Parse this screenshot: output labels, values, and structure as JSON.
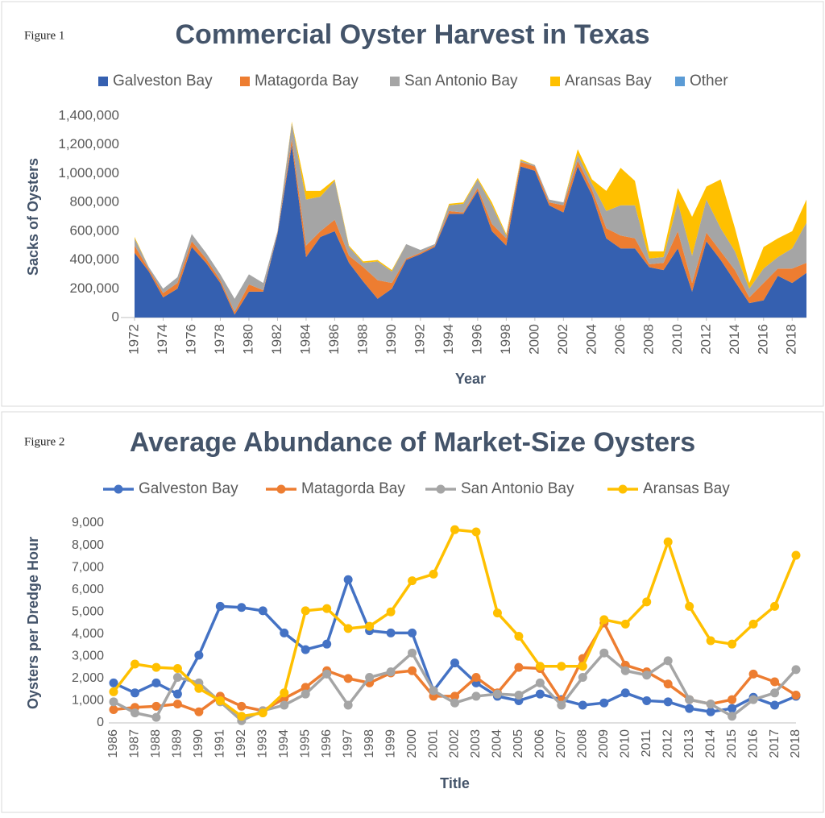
{
  "chart_data": [
    {
      "type": "area",
      "stacked": true,
      "label": "Figure 1",
      "title": "Commercial Oyster Harvest in Texas",
      "x_label": "Year",
      "y_label": "Sacks of Oysters",
      "x": [
        1972,
        1973,
        1974,
        1975,
        1976,
        1977,
        1978,
        1979,
        1980,
        1981,
        1982,
        1983,
        1984,
        1985,
        1986,
        1987,
        1988,
        1989,
        1990,
        1991,
        1992,
        1993,
        1994,
        1995,
        1996,
        1997,
        1998,
        1999,
        2000,
        2001,
        2002,
        2003,
        2004,
        2005,
        2006,
        2007,
        2008,
        2009,
        2010,
        2011,
        2012,
        2013,
        2014,
        2015,
        2016,
        2017,
        2018,
        2019
      ],
      "xlim": [
        1972,
        2019
      ],
      "xticks": [
        1972,
        1974,
        1976,
        1978,
        1980,
        1982,
        1984,
        1986,
        1988,
        1990,
        1992,
        1994,
        1996,
        1998,
        2000,
        2002,
        2004,
        2006,
        2008,
        2010,
        2012,
        2014,
        2016,
        2018
      ],
      "ylim": [
        0,
        1400000
      ],
      "yticks": [
        0,
        {
          "value": 200000,
          "label": "200,000"
        },
        {
          "value": 400000,
          "label": "400,000"
        },
        {
          "value": 600000,
          "label": "600,000"
        },
        {
          "value": 800000,
          "label": "800,000"
        },
        {
          "value": 1000000,
          "label": "1,000,000"
        },
        {
          "value": 1200000,
          "label": "1,200,000"
        },
        {
          "value": 1400000,
          "label": "1,400,000"
        }
      ],
      "series": [
        {
          "name": "Galveston Bay",
          "color": "#3560b0",
          "values": [
            450000,
            320000,
            140000,
            200000,
            490000,
            380000,
            240000,
            20000,
            180000,
            180000,
            580000,
            1200000,
            420000,
            560000,
            600000,
            380000,
            250000,
            130000,
            200000,
            400000,
            440000,
            490000,
            720000,
            720000,
            880000,
            600000,
            500000,
            1050000,
            1020000,
            780000,
            730000,
            1050000,
            850000,
            550000,
            480000,
            480000,
            350000,
            330000,
            480000,
            180000,
            530000,
            400000,
            250000,
            100000,
            120000,
            290000,
            240000,
            310000
          ]
        },
        {
          "name": "Matagorda Bay",
          "color": "#ed7d31",
          "values": [
            50000,
            15000,
            30000,
            40000,
            40000,
            30000,
            20000,
            20000,
            50000,
            10000,
            10000,
            40000,
            80000,
            40000,
            80000,
            50000,
            100000,
            130000,
            40000,
            10000,
            10000,
            10000,
            20000,
            10000,
            20000,
            50000,
            50000,
            30000,
            30000,
            20000,
            50000,
            40000,
            40000,
            70000,
            90000,
            70000,
            20000,
            50000,
            120000,
            60000,
            60000,
            60000,
            80000,
            40000,
            120000,
            50000,
            100000,
            70000
          ]
        },
        {
          "name": "San Antonio Bay",
          "color": "#a5a5a5",
          "values": [
            50000,
            15000,
            30000,
            40000,
            50000,
            40000,
            40000,
            90000,
            70000,
            50000,
            10000,
            110000,
            320000,
            240000,
            270000,
            60000,
            30000,
            130000,
            80000,
            100000,
            20000,
            10000,
            40000,
            60000,
            60000,
            130000,
            20000,
            10000,
            10000,
            20000,
            20000,
            40000,
            40000,
            120000,
            210000,
            230000,
            40000,
            40000,
            200000,
            190000,
            230000,
            160000,
            130000,
            60000,
            100000,
            80000,
            140000,
            280000
          ]
        },
        {
          "name": "Aransas Bay",
          "color": "#ffc000",
          "values": [
            10000,
            0,
            0,
            0,
            0,
            0,
            0,
            0,
            0,
            0,
            0,
            10000,
            60000,
            40000,
            10000,
            10000,
            10000,
            10000,
            10000,
            0,
            0,
            0,
            10000,
            10000,
            10000,
            20000,
            10000,
            10000,
            0,
            0,
            0,
            40000,
            30000,
            140000,
            260000,
            170000,
            50000,
            40000,
            100000,
            270000,
            90000,
            340000,
            160000,
            40000,
            150000,
            130000,
            120000,
            160000
          ]
        },
        {
          "name": "Other",
          "color": "#5b9bd5",
          "values": [
            0,
            0,
            0,
            0,
            0,
            0,
            0,
            0,
            0,
            0,
            0,
            0,
            0,
            0,
            0,
            0,
            0,
            0,
            0,
            0,
            0,
            0,
            0,
            0,
            0,
            0,
            0,
            0,
            0,
            0,
            0,
            0,
            0,
            0,
            0,
            0,
            0,
            0,
            0,
            0,
            0,
            0,
            0,
            0,
            0,
            0,
            0,
            0
          ]
        }
      ]
    },
    {
      "type": "line",
      "label": "Figure 2",
      "title": "Average Abundance of Market-Size Oysters",
      "x_label": "Title",
      "y_label": "Oysters per Dredge Hour",
      "categories": [
        "1986",
        "1987",
        "1988",
        "1989",
        "1990",
        "1991",
        "1992",
        "1993",
        "1994",
        "1995",
        "1996",
        "1997",
        "1998",
        "1999",
        "2000",
        "2001",
        "2002",
        "2003",
        "2004",
        "2005",
        "2006",
        "2007",
        "2008",
        "2009",
        "2010",
        "2011",
        "2012",
        "2013",
        "2014",
        "2015",
        "2016",
        "2017",
        "2018"
      ],
      "ylim": [
        0,
        9000
      ],
      "yticks": [
        0,
        {
          "value": 1000,
          "label": "1,000"
        },
        {
          "value": 2000,
          "label": "2,000"
        },
        {
          "value": 3000,
          "label": "3,000"
        },
        {
          "value": 4000,
          "label": "4,000"
        },
        {
          "value": 5000,
          "label": "5,000"
        },
        {
          "value": 6000,
          "label": "6,000"
        },
        {
          "value": 7000,
          "label": "7,000"
        },
        {
          "value": 8000,
          "label": "8,000"
        },
        {
          "value": 9000,
          "label": "9,000"
        }
      ],
      "series": [
        {
          "name": "Galveston Bay",
          "color": "#4472c4",
          "values": [
            1800,
            1350,
            1800,
            1300,
            3050,
            5250,
            5200,
            5050,
            4050,
            3300,
            3550,
            6450,
            4150,
            4050,
            4050,
            1450,
            2700,
            1800,
            1200,
            1000,
            1300,
            1050,
            800,
            900,
            1350,
            1000,
            950,
            650,
            500,
            650,
            1150,
            800,
            1200
          ]
        },
        {
          "name": "Matagorda Bay",
          "color": "#ed7d31",
          "values": [
            600,
            700,
            750,
            850,
            500,
            1200,
            750,
            550,
            1100,
            1600,
            2350,
            2000,
            1800,
            2250,
            2350,
            1200,
            1200,
            2050,
            1350,
            2500,
            2450,
            1000,
            2900,
            4500,
            2600,
            2300,
            1750,
            1050,
            850,
            1050,
            2200,
            1850,
            1250
          ]
        },
        {
          "name": "San Antonio Bay",
          "color": "#a5a5a5",
          "values": [
            950,
            450,
            250,
            2050,
            1800,
            950,
            100,
            550,
            800,
            1300,
            2200,
            800,
            2050,
            2300,
            3150,
            1450,
            900,
            1200,
            1300,
            1250,
            1800,
            800,
            2050,
            3150,
            2350,
            2150,
            2800,
            1050,
            850,
            300,
            1050,
            1350,
            2400
          ]
        },
        {
          "name": "Aransas Bay",
          "color": "#ffc000",
          "values": [
            1400,
            2650,
            2500,
            2450,
            1550,
            1000,
            300,
            450,
            1350,
            5050,
            5150,
            4250,
            4350,
            5000,
            6400,
            6700,
            8700,
            8600,
            4950,
            3900,
            2550,
            2550,
            2550,
            4650,
            4450,
            5450,
            8150,
            5250,
            3700,
            3550,
            4450,
            5250,
            7550
          ]
        }
      ]
    }
  ]
}
